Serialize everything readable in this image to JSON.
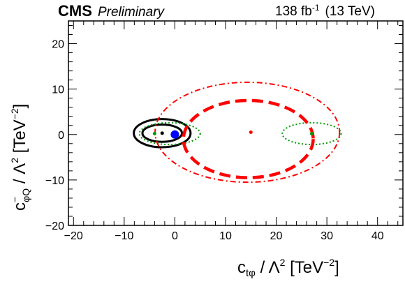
{
  "header": {
    "experiment": "CMS",
    "status": "Preliminary",
    "lumi_value": "138 fb",
    "lumi_exp": "-1",
    "energy": "(13 TeV)"
  },
  "chart_data": {
    "type": "contour",
    "xlabel": "c_{tφ} / Λ² [TeV⁻²]",
    "ylabel": "c⁻_{φQ} / Λ² [TeV⁻²]",
    "xlim": [
      -21,
      45
    ],
    "ylim": [
      -20,
      25
    ],
    "x_ticks": [
      -20,
      -10,
      0,
      10,
      20,
      30,
      40
    ],
    "y_ticks": [
      -20,
      -10,
      0,
      10,
      20
    ],
    "series": [
      {
        "color": "#000000",
        "style": "solid",
        "contours": [
          {
            "cx": -2.5,
            "cy": 0.3,
            "rx": 3.9,
            "ry": 1.9
          },
          {
            "cx": -2.5,
            "cy": 0.3,
            "rx": 5.6,
            "ry": 3.1
          }
        ]
      },
      {
        "color": "#009900",
        "style": "dotted",
        "contours": [
          {
            "cx": -1.0,
            "cy": 0.2,
            "rx": 6.0,
            "ry": 2.4
          },
          {
            "cx": 27.0,
            "cy": 0.2,
            "rx": 5.8,
            "ry": 2.4
          }
        ]
      },
      {
        "color": "#ff0000",
        "style": "dashed",
        "contours": [
          {
            "cx": 14.5,
            "cy": -1.0,
            "rx": 12.8,
            "ry": 8.5
          }
        ]
      },
      {
        "color": "#ff0000",
        "style": "dash-dot",
        "contours": [
          {
            "cx": 14.3,
            "cy": 0.5,
            "rx": 18.2,
            "ry": 11.0
          }
        ]
      }
    ],
    "points": [
      {
        "x": 0.0,
        "y": 0.0,
        "color": "#0000ff",
        "marker": "circle"
      },
      {
        "x": -2.5,
        "y": 0.3,
        "color": "#000000",
        "marker": "dot"
      },
      {
        "x": -4.0,
        "y": 0.2,
        "color": "#009900",
        "marker": "dot"
      },
      {
        "x": 27.0,
        "y": 0.2,
        "color": "#009900",
        "marker": "dot"
      },
      {
        "x": 15.0,
        "y": 0.5,
        "color": "#ff0000",
        "marker": "dot"
      }
    ]
  }
}
